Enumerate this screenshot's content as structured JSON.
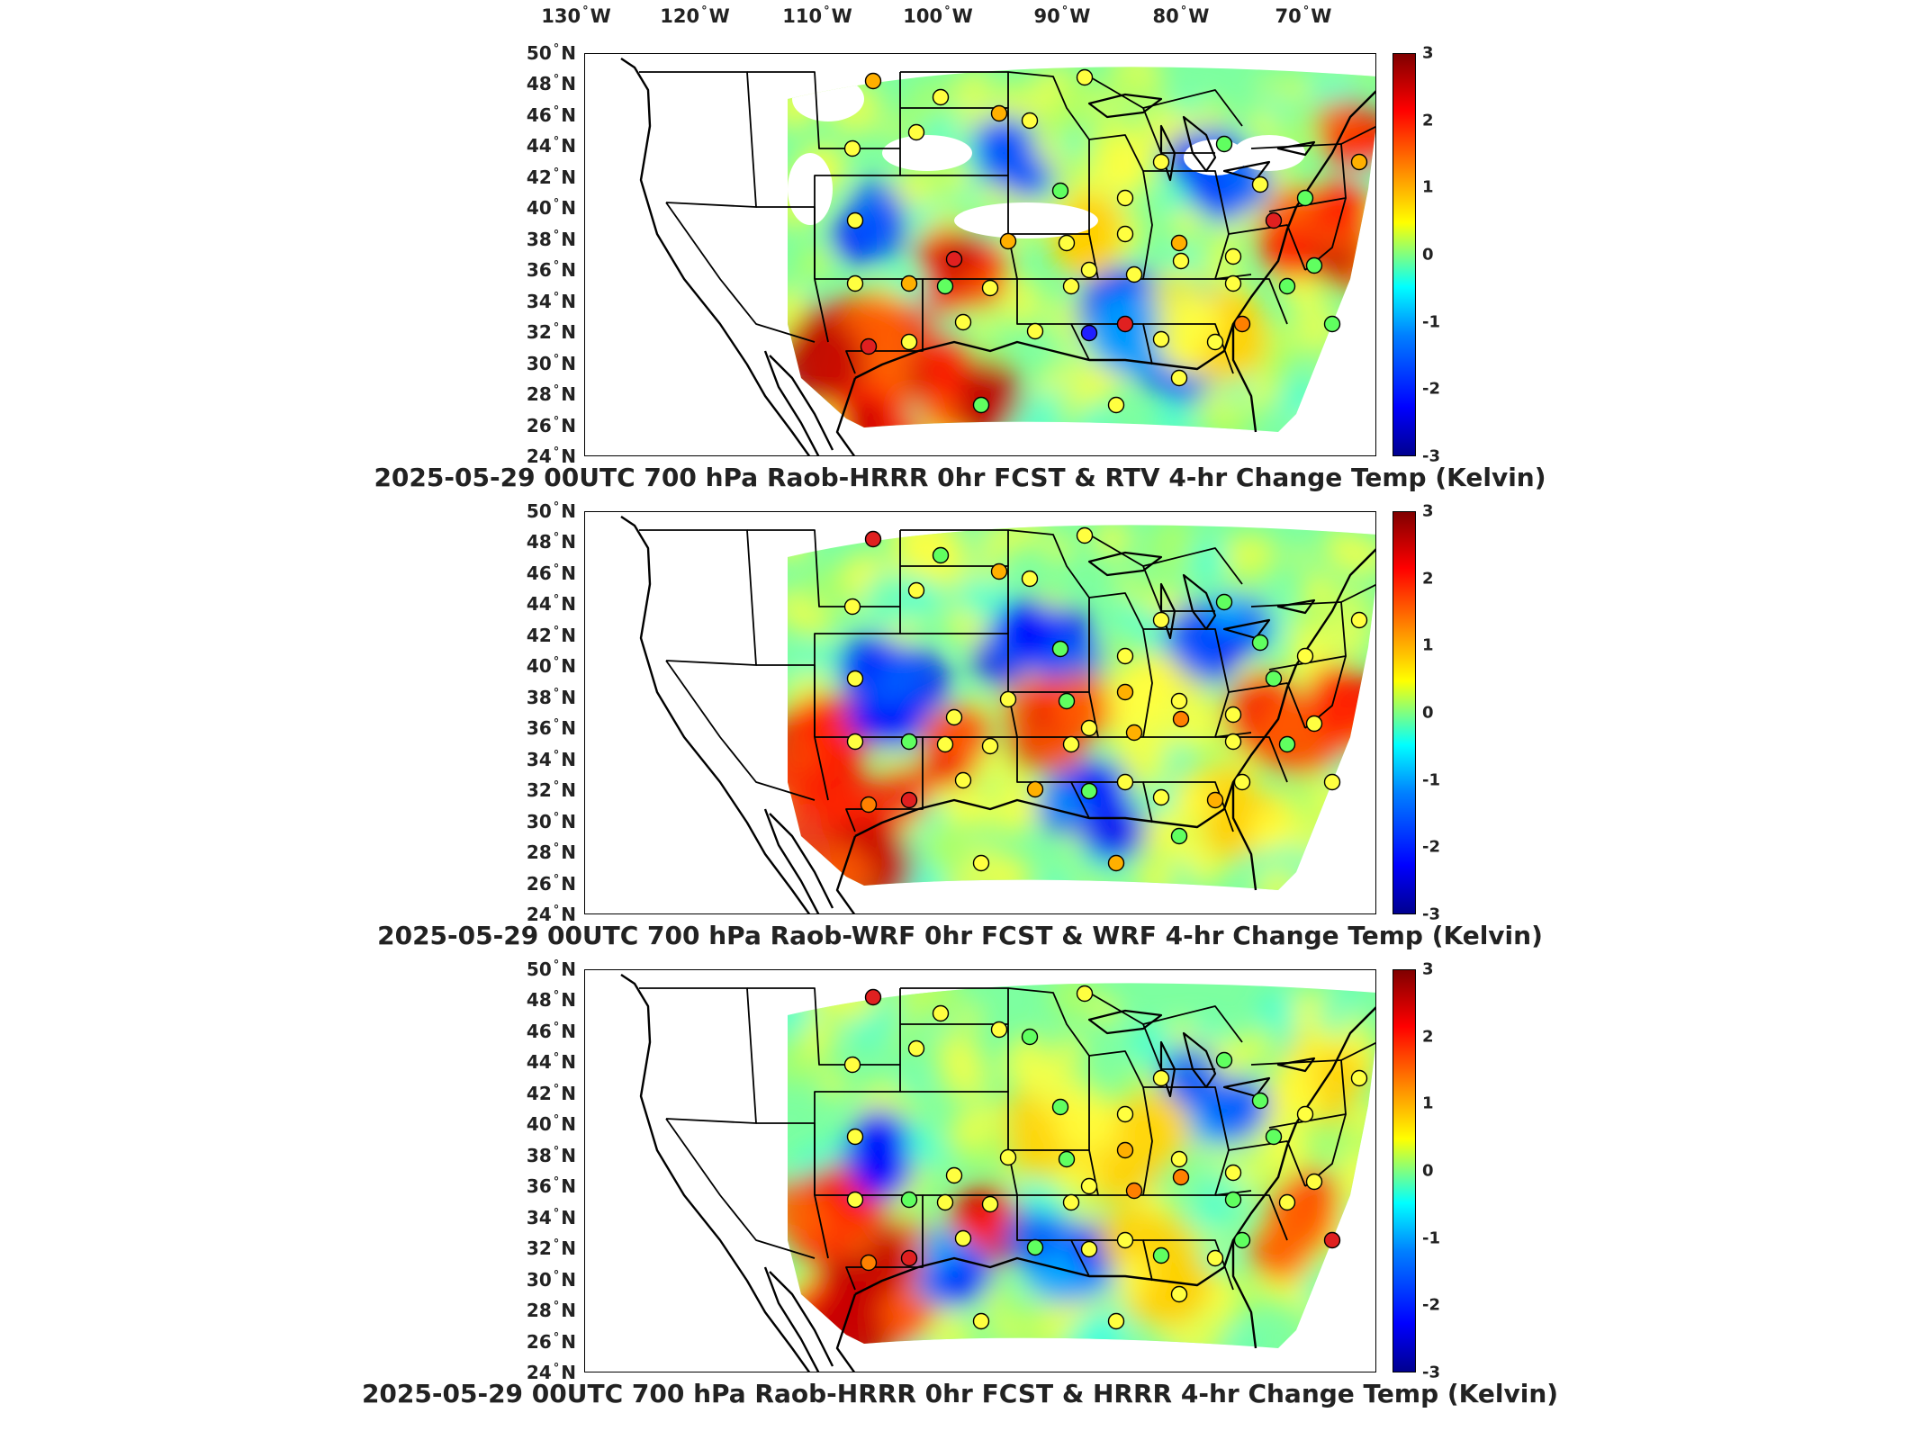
{
  "lon_labels": [
    {
      "deg": "130",
      "hem": "W"
    },
    {
      "deg": "120",
      "hem": "W"
    },
    {
      "deg": "110",
      "hem": "W"
    },
    {
      "deg": "100",
      "hem": "W"
    },
    {
      "deg": "90",
      "hem": "W"
    },
    {
      "deg": "80",
      "hem": "W"
    },
    {
      "deg": "70",
      "hem": "W"
    }
  ],
  "lat_labels": [
    {
      "deg": "50",
      "hem": "N"
    },
    {
      "deg": "48",
      "hem": "N"
    },
    {
      "deg": "46",
      "hem": "N"
    },
    {
      "deg": "44",
      "hem": "N"
    },
    {
      "deg": "42",
      "hem": "N"
    },
    {
      "deg": "40",
      "hem": "N"
    },
    {
      "deg": "38",
      "hem": "N"
    },
    {
      "deg": "36",
      "hem": "N"
    },
    {
      "deg": "34",
      "hem": "N"
    },
    {
      "deg": "32",
      "hem": "N"
    },
    {
      "deg": "30",
      "hem": "N"
    },
    {
      "deg": "28",
      "hem": "N"
    },
    {
      "deg": "26",
      "hem": "N"
    },
    {
      "deg": "24",
      "hem": "N"
    }
  ],
  "colorbar": {
    "ticks": [
      "3",
      "2",
      "1",
      "0",
      "-1",
      "-2",
      "-3"
    ],
    "range": [
      -3,
      3
    ],
    "colormap": "jet"
  },
  "panels": [
    {
      "title": "2025-05-29 00UTC 700 hPa Raob-HRRR 0hr FCST & RTV 4-hr Change Temp (Kelvin)"
    },
    {
      "title": "2025-05-29 00UTC 700 hPa Raob-WRF 0hr FCST & WRF 4-hr Change Temp (Kelvin)"
    },
    {
      "title": "2025-05-29 00UTC 700 hPa Raob-HRRR 0hr FCST & HRRR 4-hr Change Temp (Kelvin)"
    }
  ],
  "colors": {
    "cold": "#0000ff",
    "neutral": "#80ff80",
    "warm": "#ff0000",
    "outline": "#000000"
  }
}
